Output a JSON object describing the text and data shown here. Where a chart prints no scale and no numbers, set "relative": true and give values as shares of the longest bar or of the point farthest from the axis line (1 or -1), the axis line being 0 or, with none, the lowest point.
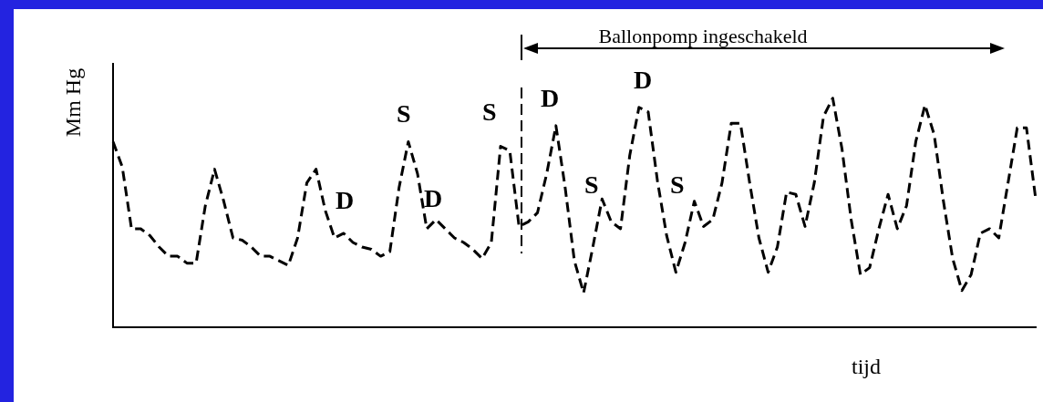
{
  "chart_data": {
    "type": "line",
    "xlabel": "tijd",
    "ylabel": "Mm Hg",
    "annotations": [
      "Ballonpomp ingeschakeld",
      "S",
      "D",
      "S",
      "D",
      "S",
      "D",
      "S",
      "D"
    ],
    "categories": [
      null,
      null,
      null,
      null,
      null,
      null,
      null,
      null,
      null,
      null,
      null,
      null,
      null,
      null,
      null,
      null,
      null,
      null,
      null,
      null,
      null,
      null,
      null,
      null,
      null,
      null,
      null,
      null,
      null,
      null,
      null,
      null,
      null,
      null,
      null,
      null,
      null,
      null,
      null,
      null,
      null,
      null,
      null,
      null,
      null,
      null,
      null,
      null,
      null,
      null,
      null,
      null,
      null,
      null,
      null,
      null,
      null,
      null,
      null,
      null,
      null,
      null,
      null,
      null,
      null,
      null,
      null,
      null,
      null,
      null,
      null,
      null,
      null,
      null,
      null,
      null,
      null,
      null,
      null,
      null,
      null,
      null,
      null,
      null,
      null,
      null,
      null,
      null,
      null,
      null,
      null,
      null,
      null,
      null,
      null,
      null,
      null,
      null,
      null,
      null,
      null
    ],
    "values": [
      0.81,
      0.7,
      0.43,
      0.43,
      0.4,
      0.35,
      0.31,
      0.31,
      0.28,
      0.28,
      0.53,
      0.69,
      0.55,
      0.39,
      0.38,
      0.35,
      0.31,
      0.31,
      0.29,
      0.27,
      0.39,
      0.63,
      0.69,
      0.51,
      0.39,
      0.41,
      0.37,
      0.35,
      0.34,
      0.31,
      0.33,
      0.61,
      0.81,
      0.67,
      0.43,
      0.47,
      0.43,
      0.39,
      0.37,
      0.34,
      0.3,
      0.37,
      0.79,
      0.77,
      0.44,
      0.46,
      0.5,
      0.67,
      0.88,
      0.61,
      0.29,
      0.15,
      0.35,
      0.56,
      0.46,
      0.43,
      0.75,
      0.96,
      0.94,
      0.64,
      0.4,
      0.24,
      0.37,
      0.55,
      0.44,
      0.47,
      0.63,
      0.89,
      0.89,
      0.63,
      0.39,
      0.24,
      0.35,
      0.59,
      0.58,
      0.44,
      0.63,
      0.92,
      1.0,
      0.78,
      0.47,
      0.23,
      0.26,
      0.43,
      0.58,
      0.43,
      0.53,
      0.81,
      0.97,
      0.84,
      0.55,
      0.3,
      0.16,
      0.23,
      0.41,
      0.43,
      0.39,
      0.63,
      0.87,
      0.87,
      0.56
    ],
    "color": "#000000",
    "relative": true,
    "line_style": "dashed",
    "marker": "none"
  }
}
